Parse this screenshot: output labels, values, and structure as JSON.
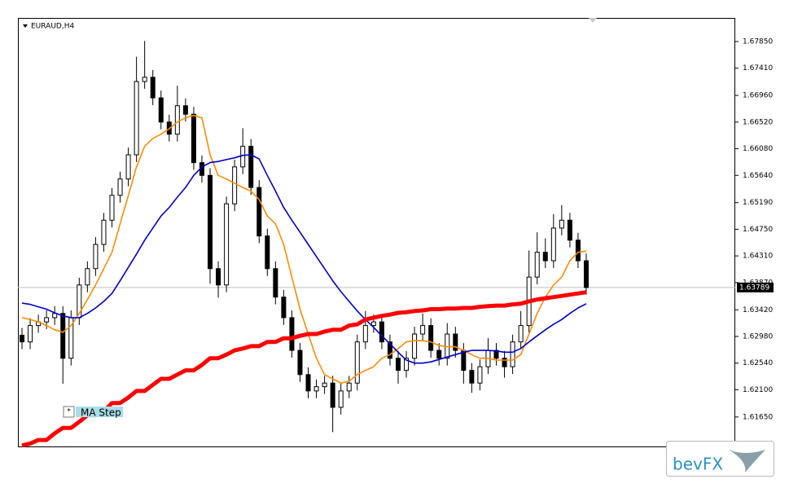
{
  "chart_data": {
    "type": "candlestick",
    "title": "EURAUD,H4",
    "ylim": [
      1.6115,
      1.6824
    ],
    "yticks": [
      {
        "value": 1.6785,
        "label": "1.67850"
      },
      {
        "value": 1.6741,
        "label": "1.67410"
      },
      {
        "value": 1.6696,
        "label": "1.66960"
      },
      {
        "value": 1.6652,
        "label": "1.66520"
      },
      {
        "value": 1.6608,
        "label": "1.66080"
      },
      {
        "value": 1.6564,
        "label": "1.65640"
      },
      {
        "value": 1.6519,
        "label": "1.65190"
      },
      {
        "value": 1.6475,
        "label": "1.64750"
      },
      {
        "value": 1.6431,
        "label": "1.64310"
      },
      {
        "value": 1.6387,
        "label": "1.63870"
      },
      {
        "value": 1.6342,
        "label": "1.63420"
      },
      {
        "value": 1.6298,
        "label": "1.62980"
      },
      {
        "value": 1.6254,
        "label": "1.62540"
      },
      {
        "value": 1.621,
        "label": "1.62100"
      },
      {
        "value": 1.6165,
        "label": "1.61650"
      }
    ],
    "last_price": {
      "value": 1.63789,
      "label": "1.63789"
    },
    "open": [
      1.63,
      1.6289,
      1.6316,
      1.6322,
      1.6329,
      1.6336,
      1.6262,
      1.6329,
      1.6383,
      1.641,
      1.645,
      1.649,
      1.6531,
      1.6558,
      1.6598,
      1.6719,
      1.6726,
      1.6692,
      1.6652,
      1.6632,
      1.6679,
      1.6665,
      1.6585,
      1.6564,
      1.641,
      1.6383,
      1.6517,
      1.6578,
      1.6612,
      1.6544,
      1.6464,
      1.641,
      1.6363,
      1.6329,
      1.6275,
      1.6235,
      1.6208,
      1.6215,
      1.6221,
      1.6181,
      1.6208,
      1.6221,
      1.6289,
      1.6316,
      1.6322,
      1.6289,
      1.6262,
      1.6242,
      1.6262,
      1.6302,
      1.6316,
      1.6275,
      1.6262,
      1.6302,
      1.6275,
      1.6242,
      1.6221,
      1.6248,
      1.6275,
      1.6262,
      1.6248,
      1.6289,
      1.6316,
      1.6396,
      1.6437,
      1.6423,
      1.6477,
      1.649,
      1.6457,
      1.6423
    ],
    "high": [
      1.6312,
      1.6328,
      1.6334,
      1.6341,
      1.6348,
      1.6348,
      1.6341,
      1.6395,
      1.6422,
      1.6462,
      1.6502,
      1.6543,
      1.657,
      1.661,
      1.676,
      1.6786,
      1.6738,
      1.6704,
      1.6664,
      1.6712,
      1.6691,
      1.6677,
      1.6597,
      1.6576,
      1.6422,
      1.6529,
      1.659,
      1.6642,
      1.6624,
      1.6556,
      1.6476,
      1.6422,
      1.6375,
      1.6341,
      1.6287,
      1.6247,
      1.6227,
      1.6233,
      1.6233,
      1.622,
      1.6233,
      1.6301,
      1.634,
      1.6334,
      1.6334,
      1.6301,
      1.6274,
      1.6274,
      1.6314,
      1.6336,
      1.6328,
      1.6287,
      1.632,
      1.6314,
      1.6287,
      1.6254,
      1.626,
      1.6295,
      1.6287,
      1.6274,
      1.6301,
      1.634,
      1.644,
      1.647,
      1.646,
      1.65,
      1.6515,
      1.6502,
      1.6469,
      1.6435
    ],
    "low": [
      1.6277,
      1.6277,
      1.6304,
      1.631,
      1.6317,
      1.622,
      1.625,
      1.6317,
      1.6371,
      1.6398,
      1.6438,
      1.6478,
      1.6519,
      1.6546,
      1.6586,
      1.6707,
      1.668,
      1.664,
      1.662,
      1.662,
      1.6653,
      1.6573,
      1.6552,
      1.6385,
      1.6362,
      1.6371,
      1.6505,
      1.6566,
      1.6532,
      1.6452,
      1.6398,
      1.6351,
      1.6317,
      1.6263,
      1.6223,
      1.6196,
      1.6196,
      1.6203,
      1.614,
      1.6169,
      1.6196,
      1.6209,
      1.6277,
      1.6304,
      1.6277,
      1.625,
      1.622,
      1.623,
      1.625,
      1.629,
      1.6263,
      1.625,
      1.625,
      1.6263,
      1.622,
      1.6205,
      1.6209,
      1.6236,
      1.625,
      1.623,
      1.6236,
      1.6277,
      1.6304,
      1.6384,
      1.6411,
      1.6411,
      1.6465,
      1.6445,
      1.6411,
      1.6367
    ],
    "close": [
      1.6289,
      1.6316,
      1.6322,
      1.6329,
      1.6336,
      1.6262,
      1.6329,
      1.6383,
      1.641,
      1.645,
      1.649,
      1.6531,
      1.6558,
      1.6598,
      1.6719,
      1.6726,
      1.6692,
      1.6652,
      1.6632,
      1.6679,
      1.6665,
      1.6585,
      1.6564,
      1.641,
      1.6383,
      1.6517,
      1.6578,
      1.6612,
      1.6544,
      1.6464,
      1.641,
      1.6363,
      1.6329,
      1.6275,
      1.6235,
      1.6208,
      1.6215,
      1.6221,
      1.6181,
      1.6208,
      1.6221,
      1.6289,
      1.6316,
      1.6322,
      1.6289,
      1.6262,
      1.6242,
      1.6262,
      1.6302,
      1.6316,
      1.6275,
      1.6262,
      1.6302,
      1.6275,
      1.6242,
      1.6221,
      1.6248,
      1.6275,
      1.6262,
      1.6248,
      1.6289,
      1.6316,
      1.6396,
      1.6437,
      1.6423,
      1.6477,
      1.649,
      1.6457,
      1.6423,
      1.63789
    ],
    "series": [
      {
        "color": "#ff8c00",
        "values": [
          1.6329,
          1.6326,
          1.6322,
          1.6316,
          1.6309,
          1.6305,
          1.6316,
          1.6336,
          1.6359,
          1.6383,
          1.641,
          1.6437,
          1.6484,
          1.6531,
          1.6578,
          1.6612,
          1.6625,
          1.6632,
          1.6641,
          1.6652,
          1.6659,
          1.6663,
          1.6659,
          1.6598,
          1.6564,
          1.6558,
          1.6551,
          1.6544,
          1.6538,
          1.6524,
          1.6497,
          1.6484,
          1.645,
          1.6396,
          1.6343,
          1.6302,
          1.6262,
          1.6235,
          1.6228,
          1.6221,
          1.6224,
          1.6235,
          1.6242,
          1.6248,
          1.6262,
          1.6268,
          1.6278,
          1.6289,
          1.6291,
          1.6291,
          1.6289,
          1.6283,
          1.6281,
          1.6281,
          1.6275,
          1.6268,
          1.6262,
          1.6262,
          1.6259,
          1.6259,
          1.6259,
          1.6268,
          1.6302,
          1.6336,
          1.6363,
          1.6383,
          1.6396,
          1.6423,
          1.6437,
          1.6439
        ]
      },
      {
        "color": "#0000cd",
        "values": [
          1.6353,
          1.6351,
          1.6347,
          1.6343,
          1.6337,
          1.6332,
          1.6329,
          1.6329,
          1.6336,
          1.6345,
          1.6356,
          1.6369,
          1.639,
          1.6412,
          1.6434,
          1.6457,
          1.6477,
          1.6497,
          1.6511,
          1.6528,
          1.6544,
          1.6564,
          1.6578,
          1.6585,
          1.6587,
          1.659,
          1.6593,
          1.6597,
          1.6598,
          1.6591,
          1.6564,
          1.6538,
          1.6511,
          1.649,
          1.647,
          1.645,
          1.643,
          1.641,
          1.639,
          1.6372,
          1.6356,
          1.634,
          1.6326,
          1.6313,
          1.6299,
          1.6286,
          1.6272,
          1.6259,
          1.6254,
          1.6254,
          1.6256,
          1.626,
          1.6264,
          1.6268,
          1.6272,
          1.6275,
          1.6275,
          1.6275,
          1.6274,
          1.6272,
          1.6272,
          1.6278,
          1.6289,
          1.6299,
          1.6309,
          1.6318,
          1.6326,
          1.6336,
          1.6345,
          1.6352
        ]
      },
      {
        "name": "MA Step",
        "color": "#ff0000",
        "values": [
          1.6118,
          1.6121,
          1.6127,
          1.6127,
          1.6138,
          1.6147,
          1.6147,
          1.6157,
          1.6168,
          1.6168,
          1.6174,
          1.6188,
          1.6188,
          1.6197,
          1.6208,
          1.6208,
          1.6218,
          1.6228,
          1.6228,
          1.6235,
          1.6242,
          1.6242,
          1.6251,
          1.6262,
          1.6262,
          1.6268,
          1.6275,
          1.6278,
          1.6282,
          1.6282,
          1.6289,
          1.6289,
          1.6295,
          1.6295,
          1.6299,
          1.6302,
          1.6302,
          1.6306,
          1.6309,
          1.6309,
          1.6316,
          1.6318,
          1.6326,
          1.6329,
          1.6332,
          1.6334,
          1.6337,
          1.6338,
          1.634,
          1.6341,
          1.6343,
          1.6343,
          1.6344,
          1.6344,
          1.6345,
          1.6345,
          1.6347,
          1.6348,
          1.6349,
          1.6349,
          1.6351,
          1.6352,
          1.6356,
          1.6359,
          1.6361,
          1.6363,
          1.6365,
          1.6367,
          1.6369,
          1.6371
        ]
      }
    ],
    "button": "*",
    "watermark": "bevFX"
  }
}
